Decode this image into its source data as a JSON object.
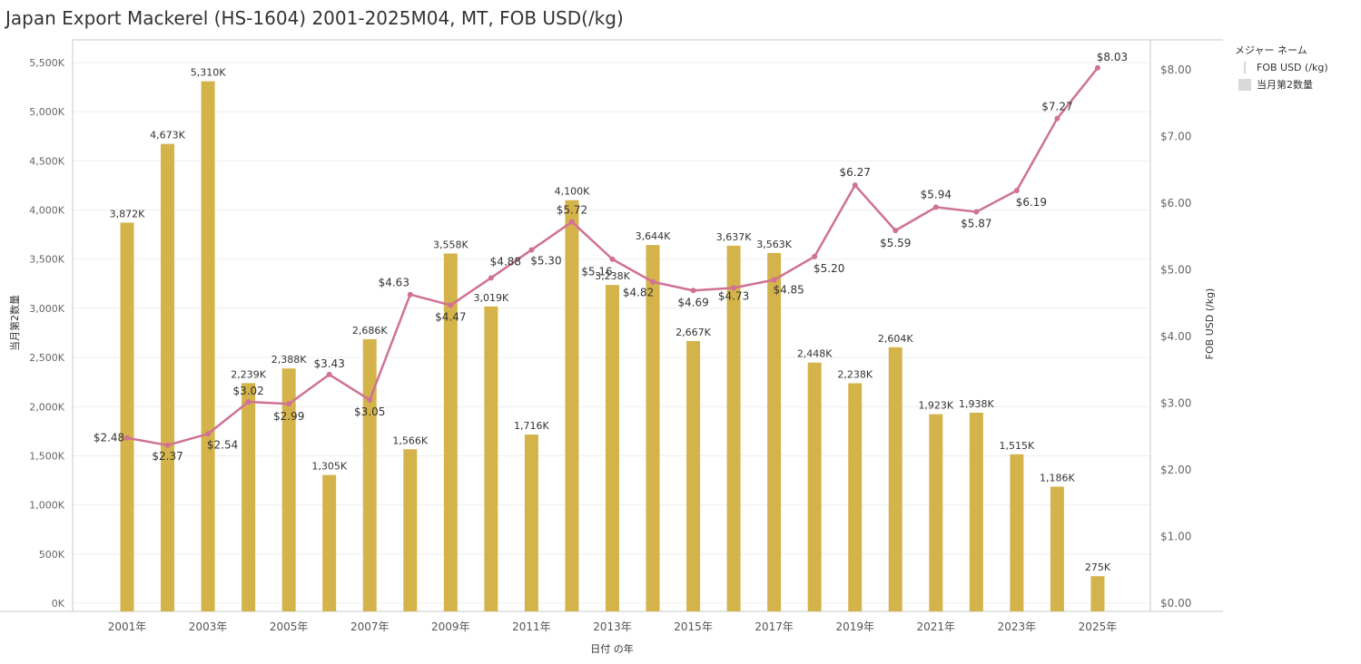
{
  "title": "Japan Export Mackerel (HS-1604) 2001-2025M04, MT, FOB USD(/kg)",
  "legend": {
    "title": "メジャー ネーム",
    "items": [
      {
        "label": "FOB USD (/kg)",
        "kind": "line"
      },
      {
        "label": "当月第2数量",
        "kind": "box"
      }
    ]
  },
  "chart_data": {
    "type": "bar+line",
    "xlabel": "日付 の年",
    "ylabel_left": "当月第2数量",
    "ylabel_right": "FOB USD (/kg)",
    "years": [
      2001,
      2002,
      2003,
      2004,
      2005,
      2006,
      2007,
      2008,
      2009,
      2010,
      2011,
      2012,
      2013,
      2014,
      2015,
      2016,
      2017,
      2018,
      2019,
      2020,
      2021,
      2022,
      2023,
      2024,
      2025
    ],
    "x_tick_labels": [
      "2001年",
      "2003年",
      "2005年",
      "2007年",
      "2009年",
      "2011年",
      "2013年",
      "2015年",
      "2017年",
      "2019年",
      "2021年",
      "2023年",
      "2025年"
    ],
    "x_tick_years": [
      2001,
      2003,
      2005,
      2007,
      2009,
      2011,
      2013,
      2015,
      2017,
      2019,
      2021,
      2023,
      2025
    ],
    "quantity_k": [
      3872,
      4673,
      5310,
      2239,
      2388,
      1305,
      2686,
      1566,
      3558,
      3019,
      1716,
      4100,
      3238,
      3644,
      2667,
      3637,
      3563,
      2448,
      2238,
      2604,
      1923,
      1938,
      1515,
      1186,
      275
    ],
    "quantity_labels": [
      "3,872K",
      "4,673K",
      "5,310K",
      "2,239K",
      "2,388K",
      "1,305K",
      "2,686K",
      "1,566K",
      "3,558K",
      "3,019K",
      "1,716K",
      "4,100K",
      "3,238K",
      "3,644K",
      "2,667K",
      "3,637K",
      "3,563K",
      "2,448K",
      "2,238K",
      "2,604K",
      "1,923K",
      "1,938K",
      "1,515K",
      "1,186K",
      "275K"
    ],
    "fob_usd": [
      2.48,
      2.37,
      2.54,
      3.02,
      2.99,
      3.43,
      3.05,
      4.63,
      4.47,
      4.88,
      5.3,
      5.72,
      5.16,
      4.82,
      4.69,
      4.73,
      4.85,
      5.2,
      6.27,
      5.59,
      5.94,
      5.87,
      6.19,
      7.27,
      8.03
    ],
    "fob_labels": [
      "$2.48",
      "$2.37",
      "$2.54",
      "$3.02",
      "$2.99",
      "$3.43",
      "$3.05",
      "$4.63",
      "$4.47",
      "$4.88",
      "$5.30",
      "$5.72",
      "$5.16",
      "$4.82",
      "$4.69",
      "$4.73",
      "$4.85",
      "$5.20",
      "$6.27",
      "$5.59",
      "$5.94",
      "$5.87",
      "$6.19",
      "$7.27",
      "$8.03"
    ],
    "left_ticks": [
      0,
      500,
      1000,
      1500,
      2000,
      2500,
      3000,
      3500,
      4000,
      4500,
      5000,
      5500
    ],
    "left_tick_labels": [
      "0K",
      "500K",
      "1,000K",
      "1,500K",
      "2,000K",
      "2,500K",
      "3,000K",
      "3,500K",
      "4,000K",
      "4,500K",
      "5,000K",
      "5,500K"
    ],
    "right_ticks": [
      0,
      1,
      2,
      3,
      4,
      5,
      6,
      7,
      8
    ],
    "right_tick_labels": [
      "$0.00",
      "$1.00",
      "$2.00",
      "$3.00",
      "$4.00",
      "$5.00",
      "$6.00",
      "$7.00",
      "$8.00"
    ],
    "left_range": [
      0,
      5500
    ],
    "right_range": [
      0,
      8
    ],
    "bar_color": "#d4b44a",
    "line_color": "#cf7294",
    "grid": true
  }
}
